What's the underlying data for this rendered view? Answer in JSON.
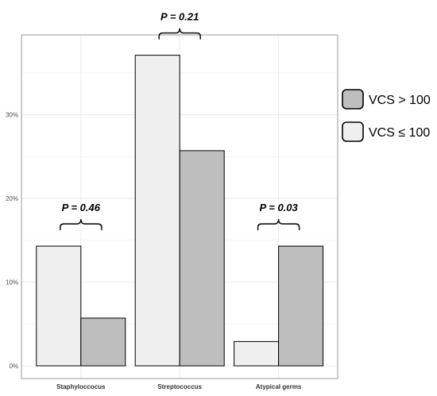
{
  "chart_data": {
    "type": "bar",
    "categories": [
      "Staphyloccocus",
      "Streptococcus",
      "Atypical germs"
    ],
    "series": [
      {
        "name": "VCS ≤ 100",
        "values": [
          14.3,
          37.1,
          2.9
        ],
        "color": "#efefef"
      },
      {
        "name": "VCS > 100",
        "values": [
          5.7,
          25.7,
          14.3
        ],
        "color": "#bebebe"
      }
    ],
    "ylim": [
      0,
      40
    ],
    "yticks": [
      0,
      10,
      20,
      30
    ],
    "ytick_labels": [
      "0%",
      "10%",
      "20%",
      "30%"
    ],
    "grid": true,
    "legend_position": "right",
    "legend_order": [
      "VCS > 100",
      "VCS ≤ 100"
    ],
    "annotations": [
      {
        "category": "Staphyloccocus",
        "text": "P = 0.46"
      },
      {
        "category": "Streptococcus",
        "text": "P = 0.21"
      },
      {
        "category": "Atypical germs",
        "text": "P = 0.03"
      }
    ]
  }
}
